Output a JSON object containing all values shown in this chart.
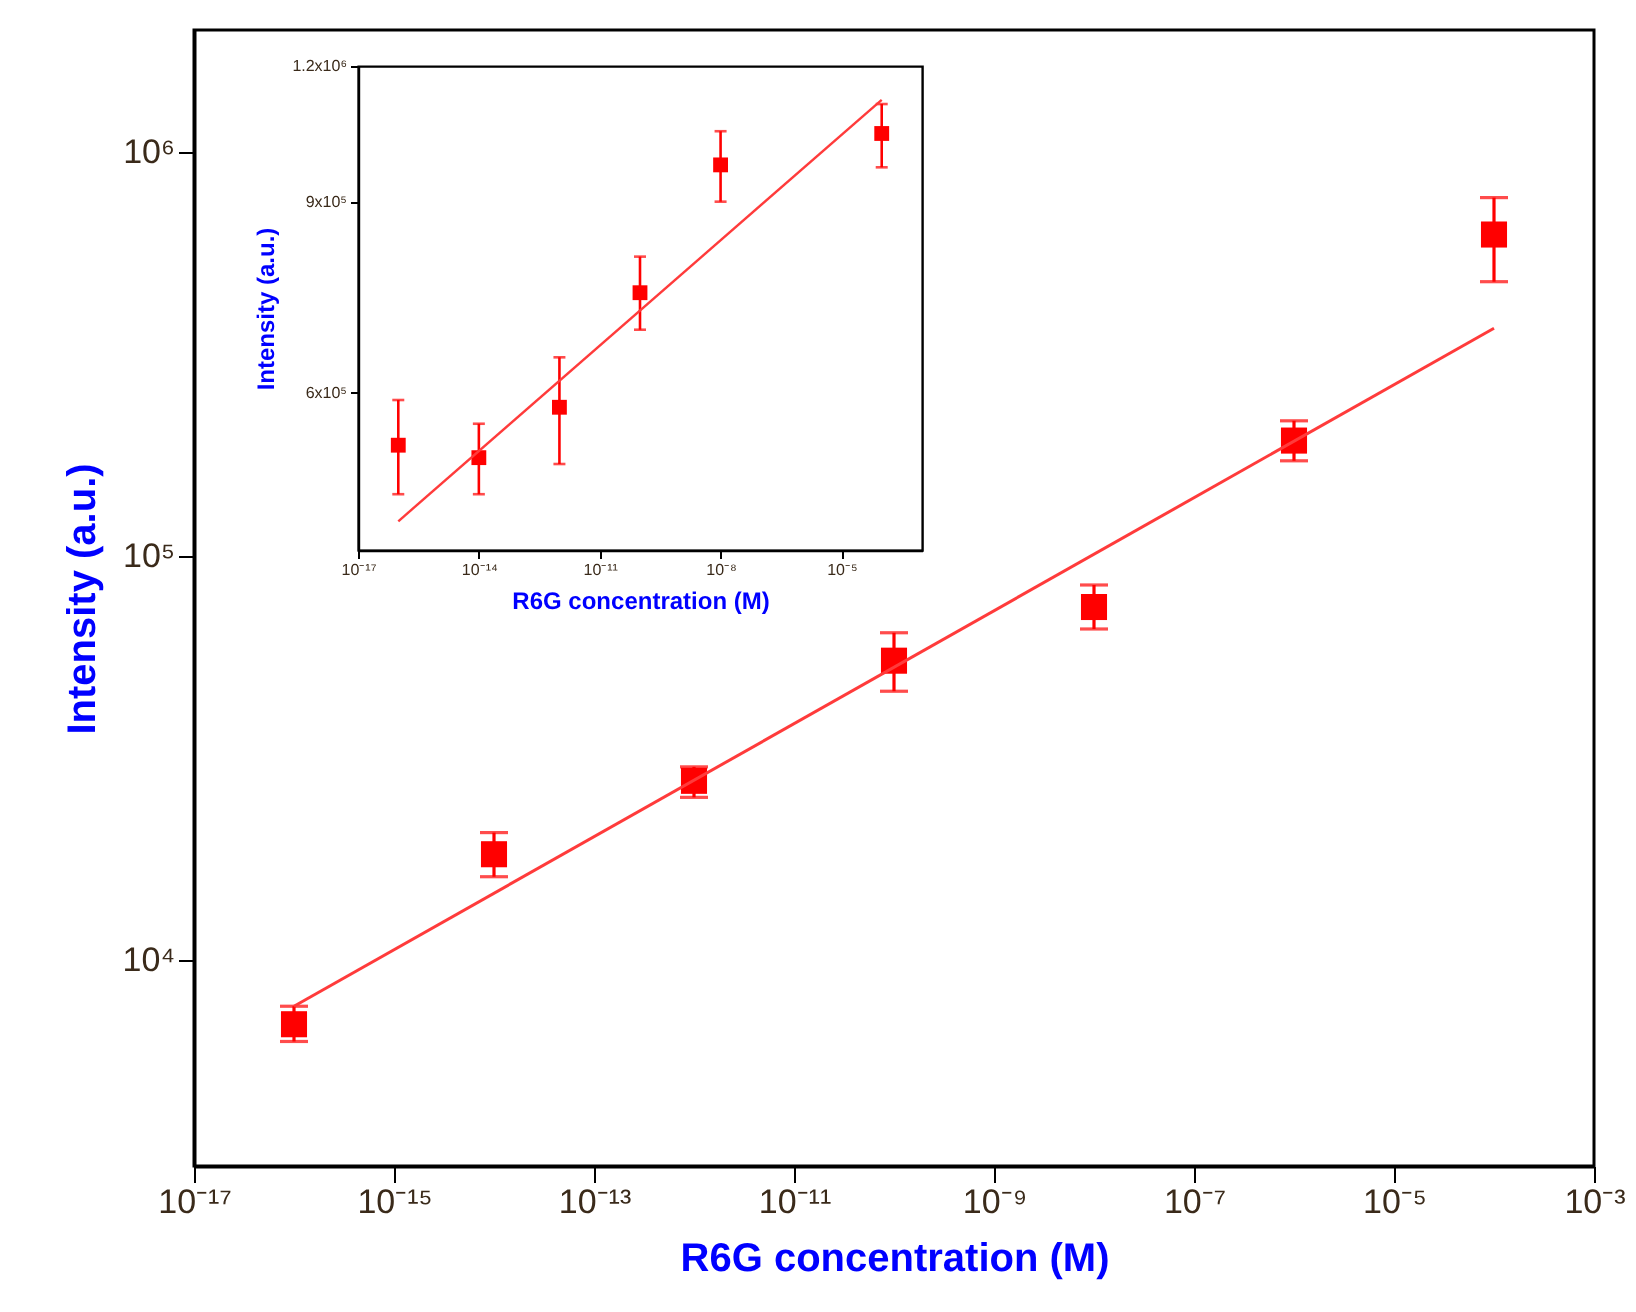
{
  "chart_data": [
    {
      "type": "scatter",
      "xlabel": "R6G concentration (M)",
      "ylabel": "Intensity (a.u.)",
      "log": "xy",
      "grid": false,
      "xlim": [
        1e-17,
        0.001
      ],
      "xticks": [
        {
          "value": 1e-17,
          "label": "10⁻¹⁷"
        },
        {
          "value": 1e-15,
          "label": "10⁻¹⁵"
        },
        {
          "value": 1e-13,
          "label": "10⁻¹³"
        },
        {
          "value": 1e-11,
          "label": "10⁻¹¹"
        },
        {
          "value": 1e-09,
          "label": "10⁻⁹"
        },
        {
          "value": 1e-07,
          "label": "10⁻⁷"
        },
        {
          "value": 1e-05,
          "label": "10⁻⁵"
        },
        {
          "value": 0.001,
          "label": "10⁻³"
        }
      ],
      "ylim": [
        3100,
        2000000
      ],
      "yticks": [
        {
          "value": 10000,
          "label": "10⁴"
        },
        {
          "value": 100000,
          "label": "10⁵"
        },
        {
          "value": 1000000,
          "label": "10⁶"
        }
      ],
      "series": [
        {
          "color": "#ff0000",
          "marker": "square",
          "x": [
            1e-16,
            1e-14,
            1e-12,
            1e-10,
            1e-08,
            1e-06,
            0.0001
          ],
          "values": [
            6950,
            18300,
            27800,
            55100,
            74800,
            193000,
            624000
          ],
          "errors": [
            [
              6300,
              7700
            ],
            [
              16100,
              20700
            ],
            [
              25300,
              30100
            ],
            [
              46300,
              64600
            ],
            [
              66000,
              84800
            ],
            [
              172000,
              216000
            ],
            [
              477000,
              770000
            ]
          ]
        },
        {
          "type": "line",
          "color": "#ff3b3b",
          "x": [
            1e-16,
            0.0001
          ],
          "values": [
            7700,
            366000
          ]
        }
      ]
    },
    {
      "type": "scatter",
      "xlabel": "R6G concentration (M)",
      "ylabel": "Intensity (a.u.)",
      "log": "xy",
      "grid": false,
      "xlim": [
        1e-17,
        0.001
      ],
      "xticks": [
        {
          "value": 1e-17,
          "label": "10⁻¹⁷"
        },
        {
          "value": 1e-14,
          "label": "10⁻¹⁴"
        },
        {
          "value": 1e-11,
          "label": "10⁻¹¹"
        },
        {
          "value": 1e-08,
          "label": "10⁻⁸"
        },
        {
          "value": 1e-05,
          "label": "10⁻⁵"
        }
      ],
      "ylim": [
        430000,
        1200000
      ],
      "yticks": [
        {
          "value": 600000,
          "label": "6x10⁵"
        },
        {
          "value": 900000,
          "label": "9x10⁵"
        },
        {
          "value": 1200000,
          "label": "1.2x10⁶"
        }
      ],
      "series": [
        {
          "color": "#ff0000",
          "marker": "square",
          "x": [
            1e-16,
            1e-14,
            1e-12,
            1e-10,
            1e-08,
            0.0001
          ],
          "values": [
            537000,
            523000,
            582000,
            742000,
            973000,
            1040000
          ],
          "errors": [
            [
              484000,
              591000
            ],
            [
              484000,
              562000
            ],
            [
              516000,
              647000
            ],
            [
              686000,
              801000
            ],
            [
              900000,
              1045000
            ],
            [
              968000,
              1107000
            ]
          ]
        },
        {
          "type": "line",
          "color": "#ff3b3b",
          "x": [
            1e-16,
            0.0001
          ],
          "values": [
            457000,
            1117000
          ]
        }
      ]
    }
  ]
}
